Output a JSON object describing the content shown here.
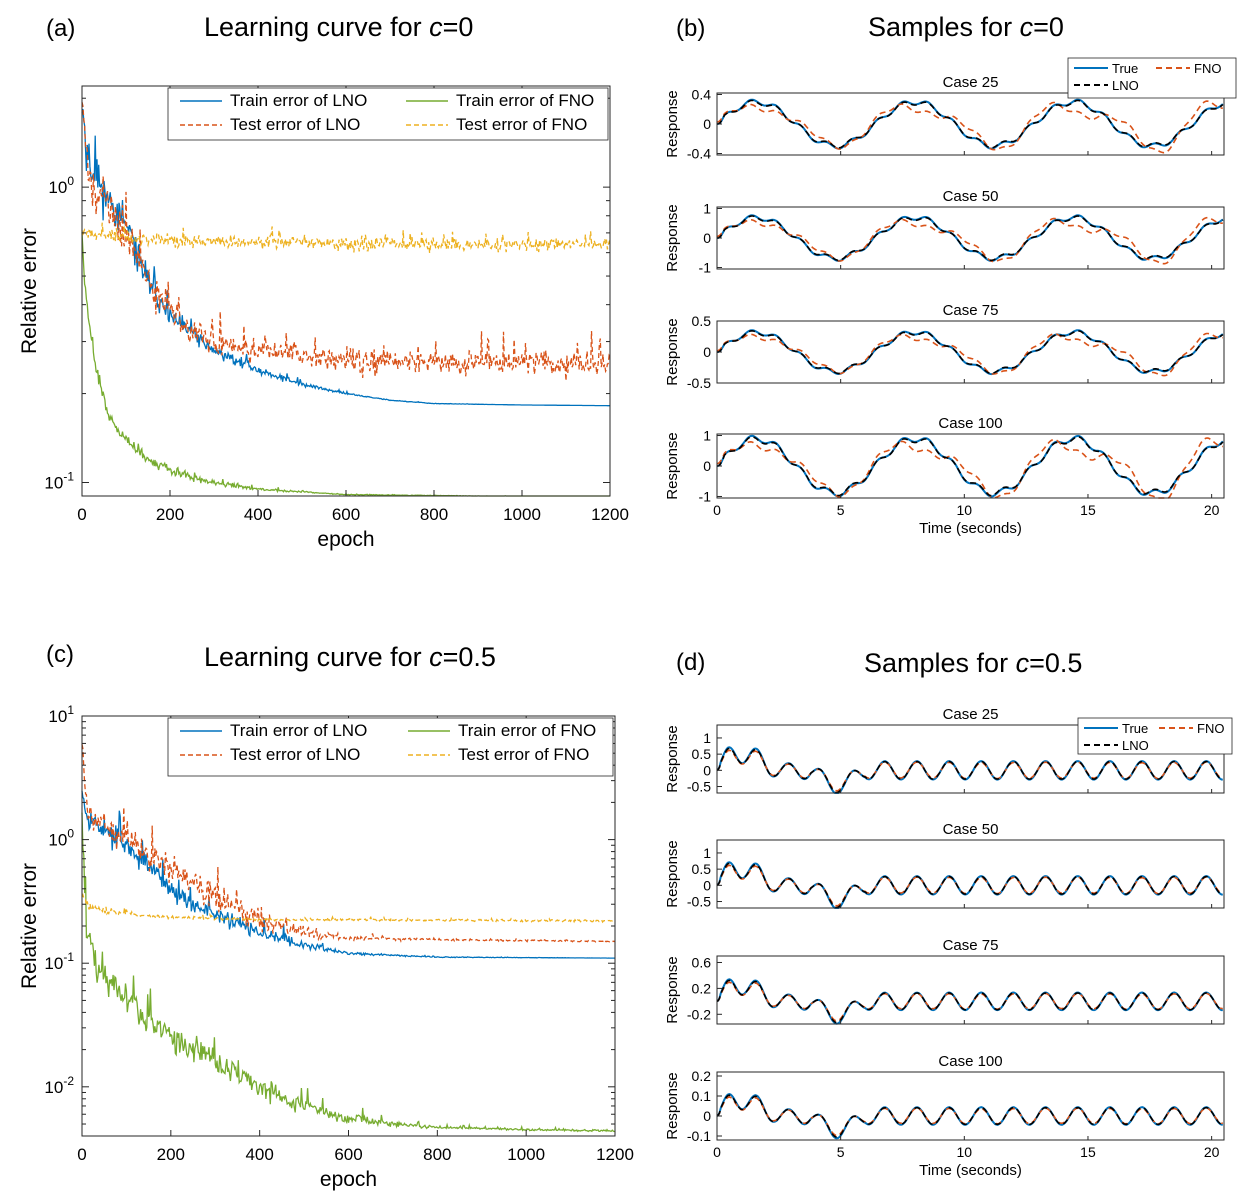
{
  "colors": {
    "train_lno": "#0072BD",
    "test_lno": "#D95319",
    "train_fno": "#77AC30",
    "test_fno": "#EDB120",
    "true": "#0072BD",
    "fno": "#D95319",
    "lno": "#000000"
  },
  "panels": [
    {
      "letter": "(a)",
      "title": "Learning curve for ",
      "c": "c",
      "value": "=0"
    },
    {
      "letter": "(b)",
      "title": "Samples for ",
      "c": "c",
      "value": "=0"
    },
    {
      "letter": "(c)",
      "title": "Learning curve for ",
      "c": "c",
      "value": "=0.5"
    },
    {
      "letter": "(d)",
      "title": "Samples for ",
      "c": "c",
      "value": "=0.5"
    }
  ],
  "chart_data": [
    {
      "type": "line",
      "panel": "(a)",
      "xlabel": "epoch",
      "ylabel": "Relative error",
      "xlim": [
        0,
        1200
      ],
      "ylim": [
        0.09,
        2.2
      ],
      "yscale": "log",
      "xticks": [
        0,
        200,
        400,
        600,
        800,
        1000,
        1200
      ],
      "yticks": [
        "10^-1",
        "10^0"
      ],
      "legend_position": "top-right",
      "series": [
        {
          "name": "Train error of LNO",
          "style": "solid",
          "color": "#0072BD",
          "points": [
            [
              0,
              2.1
            ],
            [
              10,
              1.3
            ],
            [
              30,
              1.1
            ],
            [
              60,
              0.9
            ],
            [
              100,
              0.75
            ],
            [
              130,
              0.55
            ],
            [
              160,
              0.45
            ],
            [
              200,
              0.36
            ],
            [
              250,
              0.32
            ],
            [
              300,
              0.28
            ],
            [
              400,
              0.24
            ],
            [
              500,
              0.215
            ],
            [
              600,
              0.2
            ],
            [
              700,
              0.19
            ],
            [
              800,
              0.185
            ],
            [
              1000,
              0.183
            ],
            [
              1200,
              0.182
            ]
          ],
          "noise": [
            0.22,
            0.22,
            0.2,
            0.18,
            0.16,
            0.14,
            0.12,
            0.1,
            0.08,
            0.06,
            0.04,
            0.02,
            0.01,
            0.004,
            0.002,
            0,
            0
          ]
        },
        {
          "name": "Test error of LNO",
          "style": "dashed",
          "color": "#D95319",
          "points": [
            [
              0,
              2.0
            ],
            [
              10,
              1.2
            ],
            [
              30,
              1.0
            ],
            [
              60,
              0.85
            ],
            [
              100,
              0.7
            ],
            [
              130,
              0.55
            ],
            [
              160,
              0.45
            ],
            [
              200,
              0.38
            ],
            [
              250,
              0.33
            ],
            [
              300,
              0.3
            ],
            [
              400,
              0.28
            ],
            [
              500,
              0.27
            ],
            [
              600,
              0.26
            ],
            [
              800,
              0.255
            ],
            [
              1000,
              0.255
            ],
            [
              1200,
              0.25
            ]
          ],
          "noise": [
            0.2,
            0.2,
            0.2,
            0.18,
            0.18,
            0.16,
            0.15,
            0.14,
            0.14,
            0.13,
            0.12,
            0.12,
            0.12,
            0.12,
            0.12,
            0.12
          ]
        },
        {
          "name": "Train error of FNO",
          "style": "solid",
          "color": "#77AC30",
          "points": [
            [
              0,
              0.65
            ],
            [
              10,
              0.4
            ],
            [
              30,
              0.25
            ],
            [
              60,
              0.17
            ],
            [
              100,
              0.14
            ],
            [
              150,
              0.12
            ],
            [
              200,
              0.11
            ],
            [
              300,
              0.1
            ],
            [
              400,
              0.095
            ],
            [
              500,
              0.093
            ],
            [
              600,
              0.091
            ],
            [
              1200,
              0.089
            ]
          ],
          "noise": [
            0.06,
            0.06,
            0.06,
            0.06,
            0.06,
            0.05,
            0.05,
            0.03,
            0.015,
            0.008,
            0.003,
            0.001
          ]
        },
        {
          "name": "Test error of FNO",
          "style": "dashed",
          "color": "#EDB120",
          "points": [
            [
              0,
              0.7
            ],
            [
              50,
              0.68
            ],
            [
              200,
              0.66
            ],
            [
              600,
              0.64
            ],
            [
              1200,
              0.64
            ]
          ],
          "noise": [
            0.06,
            0.06,
            0.06,
            0.06,
            0.06
          ]
        }
      ]
    },
    {
      "type": "line",
      "panel": "(b)",
      "xlabel": "Time (seconds)",
      "ylabel": "Response",
      "xlim": [
        0,
        20.5
      ],
      "xticks": [
        0,
        5,
        10,
        15,
        20
      ],
      "legend": [
        "True",
        "FNO",
        "LNO"
      ],
      "cases": [
        {
          "title": "Case 25",
          "ylim": [
            -0.42,
            0.42
          ],
          "yticks": [
            -0.4,
            0,
            0.4
          ],
          "yticklabels": [
            "-0.4",
            "0",
            "0.4"
          ],
          "amp": 0.3,
          "period": 6.4,
          "ripple": 0.18,
          "ripple_freq": 1.0,
          "fno_dev": 0.12
        },
        {
          "title": "Case 50",
          "ylim": [
            -1.05,
            1.05
          ],
          "yticks": [
            -1,
            0,
            1
          ],
          "yticklabels": [
            "-1",
            "0",
            "1"
          ],
          "amp": 0.7,
          "period": 6.4,
          "ripple": 0.18,
          "ripple_freq": 1.0,
          "fno_dev": 0.25
        },
        {
          "title": "Case 75",
          "ylim": [
            -0.5,
            0.5
          ],
          "yticks": [
            -0.5,
            0,
            0.5
          ],
          "yticklabels": [
            "-0.5",
            "0",
            "0.5"
          ],
          "amp": 0.32,
          "period": 6.4,
          "ripple": 0.18,
          "ripple_freq": 1.0,
          "fno_dev": 0.1
        },
        {
          "title": "Case 100",
          "ylim": [
            -1.05,
            1.05
          ],
          "yticks": [
            -1,
            0,
            1
          ],
          "yticklabels": [
            "-1",
            "0",
            "1"
          ],
          "amp": 0.9,
          "period": 6.4,
          "ripple": 0.18,
          "ripple_freq": 1.0,
          "fno_dev": 0.35
        }
      ]
    },
    {
      "type": "line",
      "panel": "(c)",
      "xlabel": "epoch",
      "ylabel": "Relative error",
      "xlim": [
        0,
        1200
      ],
      "ylim": [
        0.004,
        10
      ],
      "yscale": "log",
      "xticks": [
        0,
        200,
        400,
        600,
        800,
        1000,
        1200
      ],
      "yticks": [
        "10^-2",
        "10^-1",
        "10^0",
        "10^1"
      ],
      "legend_position": "top-right",
      "series": [
        {
          "name": "Train error of LNO",
          "style": "solid",
          "color": "#0072BD",
          "points": [
            [
              0,
              3.0
            ],
            [
              10,
              1.6
            ],
            [
              50,
              1.2
            ],
            [
              100,
              0.9
            ],
            [
              150,
              0.6
            ],
            [
              200,
              0.4
            ],
            [
              250,
              0.3
            ],
            [
              300,
              0.25
            ],
            [
              400,
              0.18
            ],
            [
              500,
              0.14
            ],
            [
              600,
              0.12
            ],
            [
              800,
              0.112
            ],
            [
              1200,
              0.11
            ]
          ],
          "noise": [
            0.3,
            0.3,
            0.25,
            0.25,
            0.25,
            0.22,
            0.2,
            0.2,
            0.15,
            0.1,
            0.03,
            0.01,
            0
          ]
        },
        {
          "name": "Test error of LNO",
          "style": "dashed",
          "color": "#D95319",
          "points": [
            [
              0,
              6.0
            ],
            [
              10,
              1.8
            ],
            [
              50,
              1.3
            ],
            [
              100,
              1.0
            ],
            [
              150,
              0.75
            ],
            [
              200,
              0.6
            ],
            [
              250,
              0.45
            ],
            [
              300,
              0.35
            ],
            [
              400,
              0.22
            ],
            [
              500,
              0.18
            ],
            [
              600,
              0.16
            ],
            [
              800,
              0.155
            ],
            [
              1200,
              0.15
            ]
          ],
          "noise": [
            0.3,
            0.35,
            0.3,
            0.3,
            0.3,
            0.3,
            0.3,
            0.28,
            0.25,
            0.15,
            0.05,
            0.02,
            0.02
          ]
        },
        {
          "name": "Train error of FNO",
          "style": "solid",
          "color": "#77AC30",
          "points": [
            [
              0,
              1.2
            ],
            [
              10,
              0.2
            ],
            [
              30,
              0.1
            ],
            [
              60,
              0.07
            ],
            [
              100,
              0.05
            ],
            [
              150,
              0.035
            ],
            [
              200,
              0.025
            ],
            [
              300,
              0.016
            ],
            [
              400,
              0.01
            ],
            [
              500,
              0.007
            ],
            [
              600,
              0.0055
            ],
            [
              700,
              0.005
            ],
            [
              800,
              0.0047
            ],
            [
              1000,
              0.0045
            ],
            [
              1200,
              0.0044
            ]
          ],
          "noise": [
            0.15,
            0.3,
            0.35,
            0.35,
            0.35,
            0.3,
            0.3,
            0.3,
            0.28,
            0.2,
            0.12,
            0.06,
            0.03,
            0.02,
            0.02
          ]
        },
        {
          "name": "Test error of FNO",
          "style": "dashed",
          "color": "#EDB120",
          "points": [
            [
              0,
              0.35
            ],
            [
              20,
              0.28
            ],
            [
              100,
              0.25
            ],
            [
              200,
              0.235
            ],
            [
              400,
              0.225
            ],
            [
              1200,
              0.22
            ]
          ],
          "noise": [
            0.08,
            0.08,
            0.05,
            0.04,
            0.03,
            0.02
          ]
        }
      ]
    },
    {
      "type": "line",
      "panel": "(d)",
      "xlabel": "Time (seconds)",
      "ylabel": "Response",
      "xlim": [
        0,
        20.5
      ],
      "xticks": [
        0,
        5,
        10,
        15,
        20
      ],
      "legend": [
        "True",
        "FNO",
        "LNO"
      ],
      "cases": [
        {
          "title": "Case 25",
          "ylim": [
            -0.7,
            1.4
          ],
          "yticks": [
            -0.5,
            0,
            0.5,
            1
          ],
          "yticklabels": [
            "-0.5",
            "0",
            "0.5",
            "1"
          ],
          "amp": 1.3,
          "period": 1.3,
          "fno_dev": 0.2
        },
        {
          "title": "Case 50",
          "ylim": [
            -0.7,
            1.4
          ],
          "yticks": [
            -0.5,
            0,
            0.5,
            1
          ],
          "yticklabels": [
            "-0.5",
            "0",
            "0.5",
            "1"
          ],
          "amp": 1.3,
          "period": 1.3,
          "fno_dev": 0.2
        },
        {
          "title": "Case 75",
          "ylim": [
            -0.35,
            0.7
          ],
          "yticks": [
            -0.2,
            0.2,
            0.6
          ],
          "yticklabels": [
            "-0.2",
            "0.2",
            "0.6"
          ],
          "amp": 0.62,
          "period": 1.3,
          "fno_dev": 0.1
        },
        {
          "title": "Case 100",
          "ylim": [
            -0.12,
            0.22
          ],
          "yticks": [
            -0.1,
            0,
            0.1,
            0.2
          ],
          "yticklabels": [
            "-0.1",
            "0",
            "0.1",
            "0.2"
          ],
          "amp": 0.2,
          "period": 1.3,
          "fno_dev": 0.03
        }
      ]
    }
  ]
}
